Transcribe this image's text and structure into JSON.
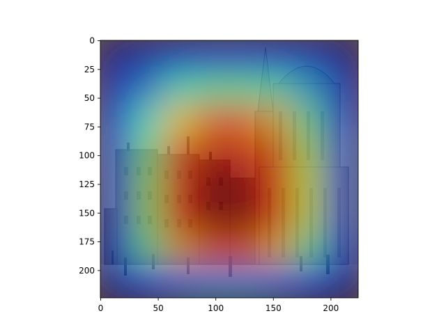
{
  "chart_data": {
    "type": "heatmap",
    "title": "",
    "xlabel": "",
    "ylabel": "",
    "xlim": [
      0,
      224
    ],
    "ylim": [
      224,
      0
    ],
    "y_inverted": true,
    "x_ticks": [
      0,
      50,
      100,
      150,
      200
    ],
    "y_ticks": [
      0,
      25,
      50,
      75,
      100,
      125,
      150,
      175,
      200
    ],
    "colormap": "jet",
    "background_image": "sepia engraving of a Venetian square with a baroque church facade and tall spire on the right and multi-storey palazzi on the left",
    "attention": {
      "grid": [
        [
          0.05,
          0.08,
          0.12,
          0.15,
          0.15,
          0.13,
          0.1,
          0.05
        ],
        [
          0.1,
          0.25,
          0.4,
          0.45,
          0.45,
          0.42,
          0.3,
          0.1
        ],
        [
          0.15,
          0.4,
          0.65,
          0.78,
          0.78,
          0.68,
          0.45,
          0.15
        ],
        [
          0.18,
          0.48,
          0.8,
          0.92,
          0.9,
          0.8,
          0.55,
          0.2
        ],
        [
          0.18,
          0.52,
          0.85,
          1.0,
          0.97,
          0.85,
          0.58,
          0.2
        ],
        [
          0.18,
          0.52,
          0.85,
          0.98,
          0.97,
          0.85,
          0.58,
          0.2
        ],
        [
          0.15,
          0.45,
          0.7,
          0.8,
          0.8,
          0.7,
          0.45,
          0.15
        ],
        [
          0.06,
          0.15,
          0.22,
          0.25,
          0.25,
          0.22,
          0.15,
          0.06
        ]
      ],
      "note_grid_size": 8
    },
    "colors": {
      "axis": "#000000",
      "background": "#ffffff"
    }
  }
}
